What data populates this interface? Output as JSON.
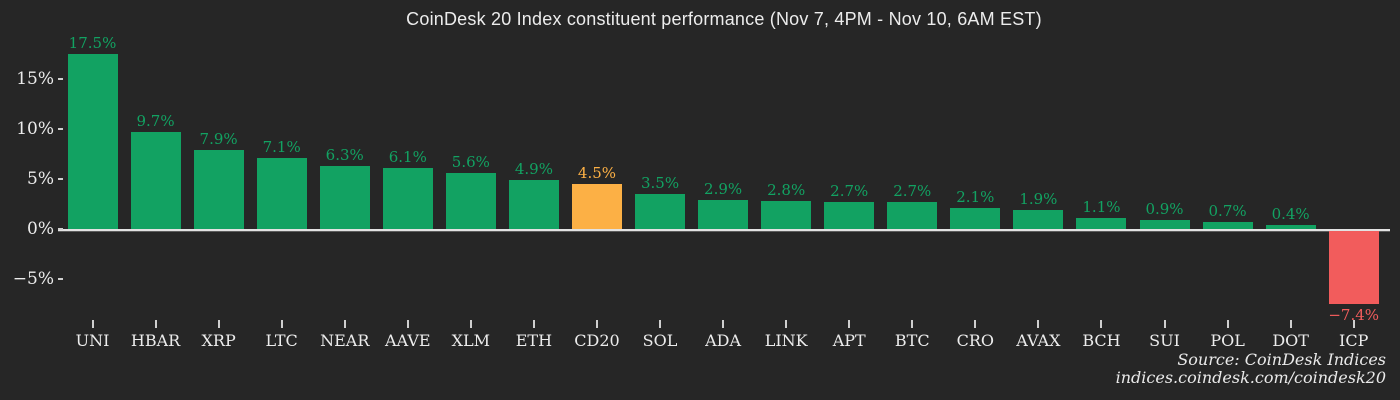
{
  "chart_data": {
    "type": "bar",
    "title": "CoinDesk 20 Index constituent performance (Nov 7, 4PM - Nov 10, 6AM EST)",
    "xlabel": "",
    "ylabel": "",
    "categories": [
      "UNI",
      "HBAR",
      "XRP",
      "LTC",
      "NEAR",
      "AAVE",
      "XLM",
      "ETH",
      "CD20",
      "SOL",
      "ADA",
      "LINK",
      "APT",
      "BTC",
      "CRO",
      "AVAX",
      "BCH",
      "SUI",
      "POL",
      "DOT",
      "ICP"
    ],
    "values": [
      17.5,
      9.7,
      7.9,
      7.1,
      6.3,
      6.1,
      5.6,
      4.9,
      4.5,
      3.5,
      2.9,
      2.8,
      2.7,
      2.7,
      2.1,
      1.9,
      1.1,
      0.9,
      0.7,
      0.4,
      -7.4
    ],
    "value_labels": [
      "17.5%",
      "9.7%",
      "7.9%",
      "7.1%",
      "6.3%",
      "6.1%",
      "5.6%",
      "4.9%",
      "4.5%",
      "3.5%",
      "2.9%",
      "2.8%",
      "2.7%",
      "2.7%",
      "2.1%",
      "1.9%",
      "1.1%",
      "0.9%",
      "0.7%",
      "0.4%",
      "−7.4%"
    ],
    "highlight_category": "CD20",
    "y_axis": {
      "tick_labels": [
        "15%",
        "10%",
        "5%",
        "0%",
        "−5%"
      ],
      "tick_values": [
        15,
        10,
        5,
        0,
        -5
      ]
    },
    "ylim": [
      -8.5,
      18.5
    ],
    "grid": false,
    "legend_position": "none",
    "colors": {
      "positive": "#12a262",
      "highlight": "#fcb045",
      "negative": "#f25c5c",
      "axis_text": "#ececec",
      "axis_line": "#e2e2e2",
      "background": "#262626"
    }
  },
  "source": {
    "line1": "Source: CoinDesk Indices",
    "line2": "indices.coindesk.com/coindesk20"
  }
}
